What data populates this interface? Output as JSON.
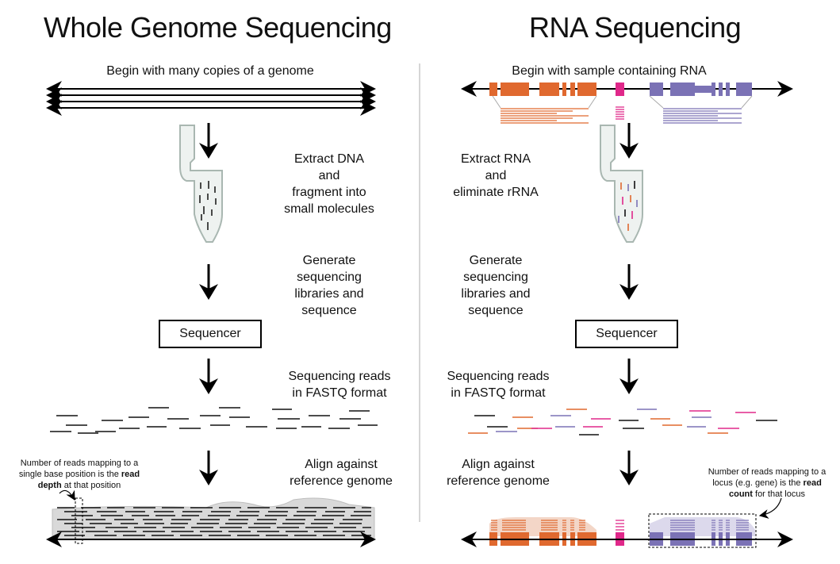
{
  "wgs": {
    "title": "Whole Genome Sequencing",
    "step_begin": "Begin with many copies of a genome",
    "step_extract": "Extract DNA\nand\nfragment into\nsmall molecules",
    "step_generate": "Generate\nsequencing\nlibraries and\nsequence",
    "sequencer": "Sequencer",
    "step_reads": "Sequencing reads\nin FASTQ format",
    "step_align": "Align against\nreference genome",
    "note_pre": "Number of reads mapping to a single base position is the ",
    "note_bold": "read depth",
    "note_post": " at that position"
  },
  "rna": {
    "title": "RNA Sequencing",
    "step_begin": "Begin with sample containing RNA",
    "step_extract": "Extract RNA\nand\neliminate rRNA",
    "step_generate": "Generate\nsequencing\nlibraries and\nsequence",
    "sequencer": "Sequencer",
    "step_reads": "Sequencing reads\nin FASTQ format",
    "step_align": "Align against\nreference genome",
    "note_pre": "Number of reads mapping to a locus (e.g. gene) is the ",
    "note_bold": "read count",
    "note_post": " for that locus"
  },
  "colors": {
    "gene_orange": "#e0692f",
    "rrna_pink": "#e0288a",
    "gene_purple": "#7b72b5",
    "coverage_gray": "#d9d9d9",
    "read_black": "#111111"
  }
}
